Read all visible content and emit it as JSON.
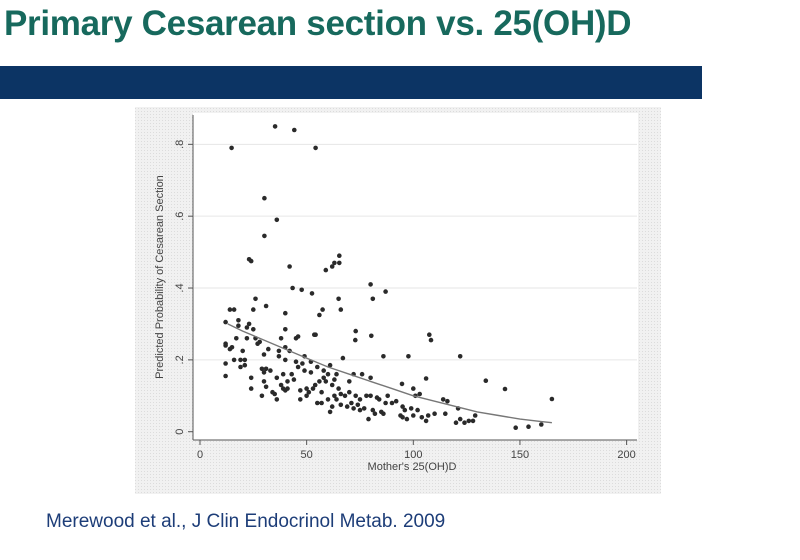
{
  "slide": {
    "title": "Primary Cesarean section vs. 25(OH)D",
    "citation": "Merewood et al., J Clin Endocrinol Metab. 2009",
    "title_color": "#17695d",
    "bar_color": "#0c3464"
  },
  "chart_data": {
    "type": "scatter",
    "title": "",
    "xlabel": "Mother's 25(OH)D",
    "ylabel": "Predicted Probability of Cesarean Section",
    "xlim": [
      0,
      200
    ],
    "ylim": [
      0,
      0.86
    ],
    "xticks": [
      0,
      50,
      100,
      150,
      200
    ],
    "xtick_labels": [
      "0",
      "50",
      "100",
      "150",
      "200"
    ],
    "yticks": [
      0,
      0.2,
      0.4,
      0.6,
      0.8
    ],
    "ytick_labels": [
      "0",
      ".2",
      ".4",
      ".6",
      ".8"
    ],
    "grid": "horizontal",
    "series": [
      {
        "name": "observations",
        "kind": "scatter",
        "points": [
          [
            14.8,
            0.79
          ],
          [
            35.2,
            0.85
          ],
          [
            44.2,
            0.84
          ],
          [
            54.2,
            0.79
          ],
          [
            30.2,
            0.65
          ],
          [
            36,
            0.59
          ],
          [
            30.2,
            0.545
          ],
          [
            23,
            0.48
          ],
          [
            24,
            0.475
          ],
          [
            42,
            0.46
          ],
          [
            43.4,
            0.4
          ],
          [
            47.7,
            0.395
          ],
          [
            52.5,
            0.385
          ],
          [
            59,
            0.45
          ],
          [
            62,
            0.46
          ],
          [
            63,
            0.47
          ],
          [
            65.3,
            0.49
          ],
          [
            65.3,
            0.47
          ],
          [
            80,
            0.41
          ],
          [
            81,
            0.37
          ],
          [
            87,
            0.39
          ],
          [
            65,
            0.37
          ],
          [
            66,
            0.34
          ],
          [
            57.5,
            0.34
          ],
          [
            56,
            0.325
          ],
          [
            53.6,
            0.27
          ],
          [
            54.2,
            0.27
          ],
          [
            73,
            0.28
          ],
          [
            72.8,
            0.255
          ],
          [
            80.3,
            0.267
          ],
          [
            107.5,
            0.27
          ],
          [
            108.3,
            0.255
          ],
          [
            86,
            0.21
          ],
          [
            97.7,
            0.21
          ],
          [
            122,
            0.21
          ],
          [
            106,
            0.148
          ],
          [
            94.7,
            0.133
          ],
          [
            134,
            0.142
          ],
          [
            143,
            0.119
          ],
          [
            165,
            0.091
          ],
          [
            148,
            0.011
          ],
          [
            154,
            0.014
          ],
          [
            160,
            0.02
          ],
          [
            26,
            0.37
          ],
          [
            31,
            0.35
          ],
          [
            25,
            0.34
          ],
          [
            40,
            0.33
          ],
          [
            14,
            0.34
          ],
          [
            16,
            0.34
          ],
          [
            40,
            0.285
          ],
          [
            12,
            0.155
          ],
          [
            12,
            0.19
          ],
          [
            12,
            0.24
          ],
          [
            12,
            0.245
          ],
          [
            12,
            0.305
          ],
          [
            14,
            0.23
          ],
          [
            15,
            0.235
          ],
          [
            16,
            0.2
          ],
          [
            17,
            0.26
          ],
          [
            18,
            0.295
          ],
          [
            18,
            0.31
          ],
          [
            19,
            0.18
          ],
          [
            19,
            0.2
          ],
          [
            20,
            0.225
          ],
          [
            21,
            0.185
          ],
          [
            21,
            0.2
          ],
          [
            22,
            0.26
          ],
          [
            22,
            0.29
          ],
          [
            23,
            0.3
          ],
          [
            24,
            0.12
          ],
          [
            24,
            0.15
          ],
          [
            25,
            0.285
          ],
          [
            26,
            0.26
          ],
          [
            27,
            0.245
          ],
          [
            28,
            0.25
          ],
          [
            29,
            0.1
          ],
          [
            29,
            0.175
          ],
          [
            30,
            0.165
          ],
          [
            30,
            0.14
          ],
          [
            30,
            0.215
          ],
          [
            31,
            0.125
          ],
          [
            31,
            0.175
          ],
          [
            32,
            0.23
          ],
          [
            33,
            0.17
          ],
          [
            34,
            0.11
          ],
          [
            35,
            0.105
          ],
          [
            36,
            0.09
          ],
          [
            36,
            0.15
          ],
          [
            37,
            0.21
          ],
          [
            37,
            0.225
          ],
          [
            38,
            0.13
          ],
          [
            38,
            0.26
          ],
          [
            39,
            0.12
          ],
          [
            39,
            0.16
          ],
          [
            40,
            0.115
          ],
          [
            40,
            0.2
          ],
          [
            40,
            0.235
          ],
          [
            41,
            0.14
          ],
          [
            41,
            0.12
          ],
          [
            42,
            0.225
          ],
          [
            43,
            0.16
          ],
          [
            44,
            0.145
          ],
          [
            45,
            0.26
          ],
          [
            45,
            0.195
          ],
          [
            46,
            0.265
          ],
          [
            46,
            0.18
          ],
          [
            47,
            0.09
          ],
          [
            47,
            0.115
          ],
          [
            48,
            0.19
          ],
          [
            49,
            0.17
          ],
          [
            49,
            0.21
          ],
          [
            50,
            0.1
          ],
          [
            50,
            0.12
          ],
          [
            51,
            0.11
          ],
          [
            52,
            0.165
          ],
          [
            52,
            0.195
          ],
          [
            53,
            0.12
          ],
          [
            54,
            0.13
          ],
          [
            55,
            0.08
          ],
          [
            55,
            0.18
          ],
          [
            56,
            0.14
          ],
          [
            57,
            0.08
          ],
          [
            57,
            0.11
          ],
          [
            58,
            0.15
          ],
          [
            58,
            0.17
          ],
          [
            59,
            0.14
          ],
          [
            60,
            0.09
          ],
          [
            60,
            0.16
          ],
          [
            61,
            0.055
          ],
          [
            61,
            0.185
          ],
          [
            62,
            0.07
          ],
          [
            62,
            0.13
          ],
          [
            63,
            0.1
          ],
          [
            63,
            0.145
          ],
          [
            64,
            0.09
          ],
          [
            64,
            0.16
          ],
          [
            65,
            0.12
          ],
          [
            66,
            0.075
          ],
          [
            66,
            0.105
          ],
          [
            67,
            0.205
          ],
          [
            68,
            0.1
          ],
          [
            69,
            0.07
          ],
          [
            70,
            0.11
          ],
          [
            70,
            0.14
          ],
          [
            71,
            0.08
          ],
          [
            72,
            0.065
          ],
          [
            72,
            0.16
          ],
          [
            73,
            0.1
          ],
          [
            74,
            0.075
          ],
          [
            75,
            0.06
          ],
          [
            75,
            0.09
          ],
          [
            76,
            0.16
          ],
          [
            77,
            0.065
          ],
          [
            78,
            0.1
          ],
          [
            79,
            0.035
          ],
          [
            80,
            0.15
          ],
          [
            80,
            0.1
          ],
          [
            81,
            0.06
          ],
          [
            82,
            0.05
          ],
          [
            83,
            0.095
          ],
          [
            84,
            0.09
          ],
          [
            85,
            0.055
          ],
          [
            86,
            0.05
          ],
          [
            87,
            0.08
          ],
          [
            88,
            0.1
          ],
          [
            90,
            0.08
          ],
          [
            92,
            0.085
          ],
          [
            94,
            0.045
          ],
          [
            95,
            0.04
          ],
          [
            95,
            0.07
          ],
          [
            96,
            0.06
          ],
          [
            97,
            0.035
          ],
          [
            99,
            0.065
          ],
          [
            100,
            0.045
          ],
          [
            100,
            0.12
          ],
          [
            101,
            0.1
          ],
          [
            102,
            0.06
          ],
          [
            103,
            0.105
          ],
          [
            104,
            0.04
          ],
          [
            106,
            0.03
          ],
          [
            107,
            0.045
          ],
          [
            110,
            0.05
          ],
          [
            114,
            0.09
          ],
          [
            116,
            0.085
          ],
          [
            115,
            0.05
          ],
          [
            120,
            0.025
          ],
          [
            121,
            0.065
          ],
          [
            122,
            0.035
          ],
          [
            124,
            0.025
          ],
          [
            126,
            0.03
          ],
          [
            128,
            0.03
          ],
          [
            129,
            0.045
          ]
        ]
      },
      {
        "name": "fitted",
        "kind": "line",
        "points": [
          [
            13,
            0.3
          ],
          [
            20,
            0.28
          ],
          [
            30,
            0.255
          ],
          [
            40,
            0.23
          ],
          [
            50,
            0.205
          ],
          [
            60,
            0.18
          ],
          [
            70,
            0.16
          ],
          [
            80,
            0.14
          ],
          [
            90,
            0.12
          ],
          [
            100,
            0.1
          ],
          [
            110,
            0.085
          ],
          [
            120,
            0.07
          ],
          [
            130,
            0.055
          ],
          [
            140,
            0.045
          ],
          [
            150,
            0.035
          ],
          [
            160,
            0.028
          ],
          [
            165,
            0.025
          ]
        ]
      }
    ]
  }
}
